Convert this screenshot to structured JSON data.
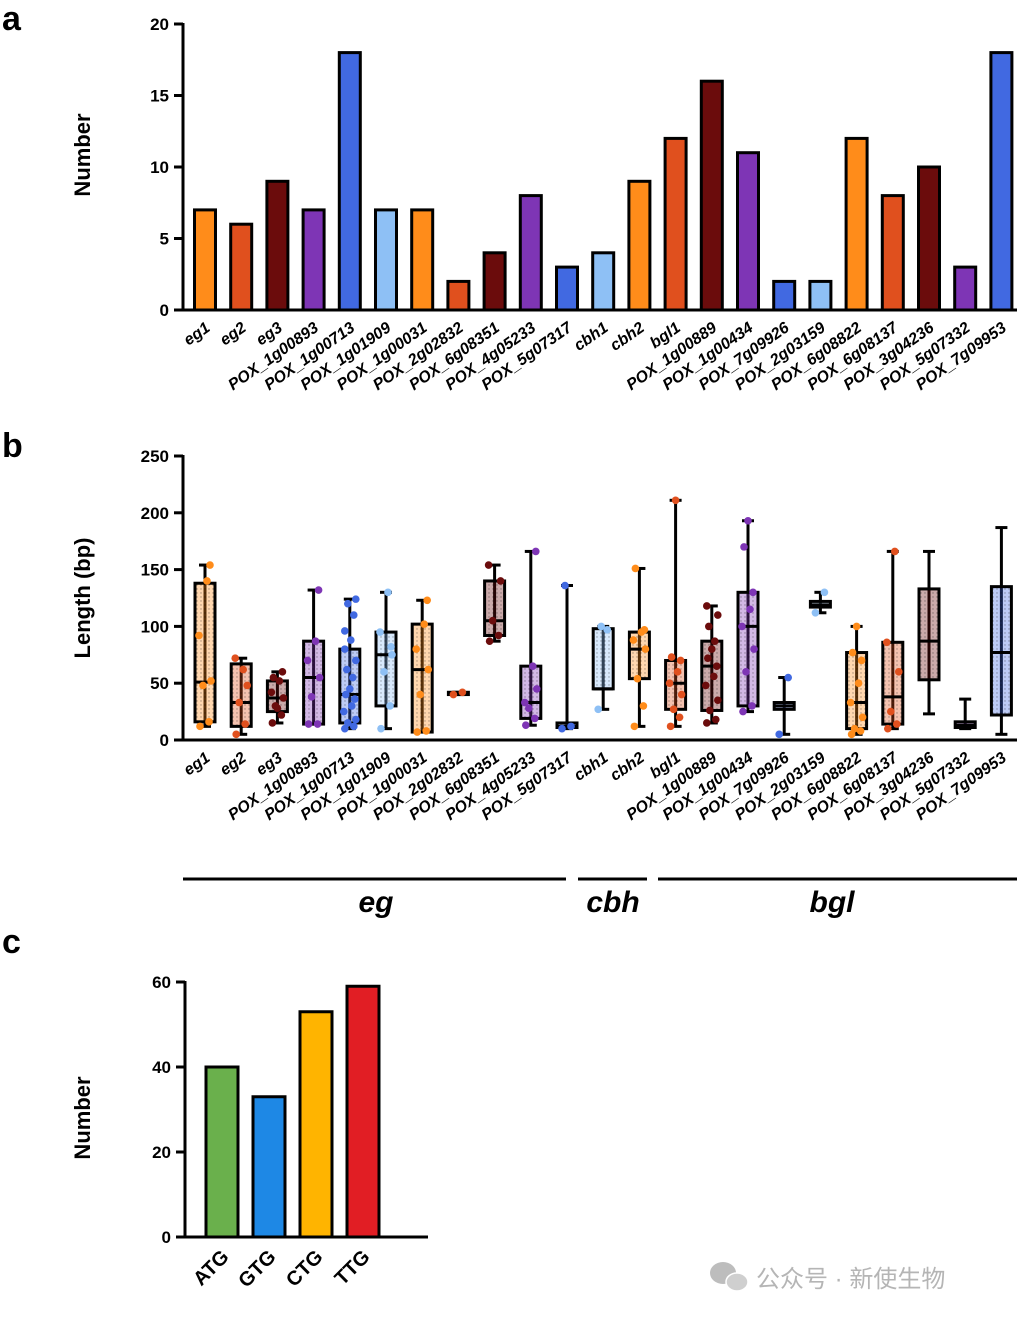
{
  "panels": {
    "a": "a",
    "b": "b",
    "c": "c"
  },
  "watermark": "公众号 · 新使生物",
  "colors": {
    "orange": "#ff8c1a",
    "redorange": "#e0501e",
    "maroon": "#6b0c0c",
    "purple": "#7e35b5",
    "blue": "#4169e1",
    "lightblue": "#8ec0f5",
    "green": "#6ab04c",
    "blue2": "#1e88e5",
    "yellow": "#ffb400",
    "red": "#e11e24"
  },
  "chart_data": [
    {
      "type": "bar",
      "ylabel": "Number",
      "ylim": [
        0,
        20
      ],
      "yticks": [
        0,
        5,
        10,
        15,
        20
      ],
      "categories": [
        "eg1",
        "eg2",
        "eg3",
        "POX_1g00893",
        "POX_1g00713",
        "POX_1g01909",
        "POX_1g00031",
        "POX_2g02832",
        "POX_6g08351",
        "POX_4g05233",
        "POX_5g07317",
        "cbh1",
        "cbh2",
        "bgl1",
        "POX_1g00889",
        "POX_1g00434",
        "POX_7g09926",
        "POX_2g03159",
        "POX_6g08822",
        "POX_6g08137",
        "POX_3g04236",
        "POX_5g07332",
        "POX_7g09953"
      ],
      "values": [
        7,
        6,
        9,
        7,
        18,
        7,
        7,
        2,
        4,
        8,
        3,
        4,
        9,
        12,
        16,
        11,
        2,
        2,
        12,
        8,
        10,
        3,
        18
      ],
      "colors": [
        "orange",
        "redorange",
        "maroon",
        "purple",
        "blue",
        "lightblue",
        "orange",
        "redorange",
        "maroon",
        "purple",
        "blue",
        "lightblue",
        "orange",
        "redorange",
        "maroon",
        "purple",
        "blue",
        "lightblue",
        "orange",
        "redorange",
        "maroon",
        "purple",
        "blue"
      ]
    },
    {
      "type": "box",
      "ylabel": "Length (bp)",
      "ylim": [
        0,
        250
      ],
      "yticks": [
        0,
        50,
        100,
        150,
        200,
        250
      ],
      "categories": [
        "eg1",
        "eg2",
        "eg3",
        "POX_1g00893",
        "POX_1g00713",
        "POX_1g01909",
        "POX_1g00031",
        "POX_2g02832",
        "POX_6g08351",
        "POX_4g05233",
        "POX_5g07317",
        "cbh1",
        "cbh2",
        "bgl1",
        "POX_1g00889",
        "POX_1g00434",
        "POX_7g09926",
        "POX_2g03159",
        "POX_6g08822",
        "POX_6g08137",
        "POX_3g04236",
        "POX_5g07332",
        "POX_7g09953"
      ],
      "colors": [
        "orange",
        "redorange",
        "maroon",
        "purple",
        "blue",
        "lightblue",
        "orange",
        "redorange",
        "maroon",
        "purple",
        "blue",
        "lightblue",
        "orange",
        "redorange",
        "maroon",
        "purple",
        "blue",
        "lightblue",
        "orange",
        "redorange",
        "maroon",
        "purple",
        "blue"
      ],
      "boxes": [
        {
          "min": 12,
          "q1": 16,
          "median": 51,
          "q3": 138,
          "max": 154,
          "points": [
            12,
            16,
            48,
            52,
            92,
            140,
            154
          ]
        },
        {
          "min": 5,
          "q1": 12,
          "median": 33,
          "q3": 67,
          "max": 72,
          "points": [
            5,
            14,
            33,
            48,
            72,
            62
          ]
        },
        {
          "min": 15,
          "q1": 25,
          "median": 37,
          "q3": 52,
          "max": 60,
          "points": [
            15,
            22,
            30,
            37,
            42,
            52,
            60,
            55,
            28
          ]
        },
        {
          "min": 14,
          "q1": 14,
          "median": 55,
          "q3": 87,
          "max": 132,
          "points": [
            14,
            14,
            38,
            55,
            70,
            87,
            132
          ]
        },
        {
          "min": 10,
          "q1": 15,
          "median": 40,
          "q3": 80,
          "max": 124,
          "points": [
            10,
            12,
            15,
            18,
            25,
            30,
            36,
            40,
            45,
            55,
            62,
            70,
            80,
            88,
            96,
            110,
            120,
            124
          ]
        },
        {
          "min": 10,
          "q1": 30,
          "median": 75,
          "q3": 95,
          "max": 130,
          "points": [
            10,
            30,
            60,
            75,
            95,
            130,
            82
          ]
        },
        {
          "min": 7,
          "q1": 7,
          "median": 62,
          "q3": 102,
          "max": 123,
          "points": [
            7,
            8,
            40,
            62,
            80,
            102,
            123
          ]
        },
        {
          "min": 40,
          "q1": 40,
          "median": 41,
          "q3": 42,
          "max": 42,
          "points": [
            40,
            42
          ]
        },
        {
          "min": 87,
          "q1": 92,
          "median": 105,
          "q3": 140,
          "max": 154,
          "points": [
            87,
            92,
            105,
            140,
            154
          ]
        },
        {
          "min": 13,
          "q1": 19,
          "median": 33,
          "q3": 65,
          "max": 166,
          "points": [
            13,
            19,
            28,
            45,
            33,
            65,
            166
          ]
        },
        {
          "min": 10,
          "q1": 11,
          "median": 12,
          "q3": 15,
          "max": 136,
          "points": [
            10,
            12,
            136
          ]
        },
        {
          "min": 27,
          "q1": 45,
          "median": 45,
          "q3": 98,
          "max": 100,
          "points": [
            27,
            97,
            100
          ]
        },
        {
          "min": 12,
          "q1": 54,
          "median": 80,
          "q3": 95,
          "max": 151,
          "points": [
            12,
            30,
            54,
            80,
            88,
            95,
            97,
            151
          ]
        },
        {
          "min": 12,
          "q1": 27,
          "median": 50,
          "q3": 70,
          "max": 211,
          "points": [
            12,
            20,
            27,
            40,
            50,
            60,
            70,
            73,
            211
          ]
        },
        {
          "min": 15,
          "q1": 26,
          "median": 65,
          "q3": 87,
          "max": 118,
          "points": [
            15,
            18,
            26,
            35,
            48,
            56,
            65,
            72,
            80,
            87,
            100,
            110,
            118
          ]
        },
        {
          "min": 25,
          "q1": 30,
          "median": 100,
          "q3": 130,
          "max": 193,
          "points": [
            25,
            30,
            60,
            80,
            100,
            115,
            130,
            170,
            193
          ]
        },
        {
          "min": 5,
          "q1": 27,
          "median": 30,
          "q3": 33,
          "max": 55,
          "points": [
            5,
            55
          ]
        },
        {
          "min": 112,
          "q1": 117,
          "median": 119,
          "q3": 122,
          "max": 130,
          "points": [
            112,
            130
          ]
        },
        {
          "min": 5,
          "q1": 10,
          "median": 33,
          "q3": 77,
          "max": 100,
          "points": [
            5,
            8,
            10,
            20,
            33,
            50,
            70,
            77,
            100
          ]
        },
        {
          "min": 10,
          "q1": 14,
          "median": 38,
          "q3": 86,
          "max": 166,
          "points": [
            10,
            14,
            25,
            60,
            86,
            166
          ]
        },
        {
          "min": 23,
          "q1": 53,
          "median": 87,
          "q3": 133,
          "max": 166,
          "points": []
        },
        {
          "min": 10,
          "q1": 11,
          "median": 13,
          "q3": 16,
          "max": 36,
          "points": []
        },
        {
          "min": 5,
          "q1": 22,
          "median": 77,
          "q3": 135,
          "max": 187,
          "points": []
        }
      ],
      "groups": [
        {
          "label": "eg",
          "from": 0,
          "to": 10
        },
        {
          "label": "cbh",
          "from": 11,
          "to": 12
        },
        {
          "label": "bgl",
          "from": 13,
          "to": 22
        }
      ]
    },
    {
      "type": "bar",
      "ylabel": "Number",
      "ylim": [
        0,
        60
      ],
      "yticks": [
        0,
        20,
        40,
        60
      ],
      "categories": [
        "ATG",
        "GTG",
        "CTG",
        "TTG"
      ],
      "values": [
        40,
        33,
        53,
        59
      ],
      "colors": [
        "green",
        "blue2",
        "yellow",
        "red"
      ]
    }
  ]
}
